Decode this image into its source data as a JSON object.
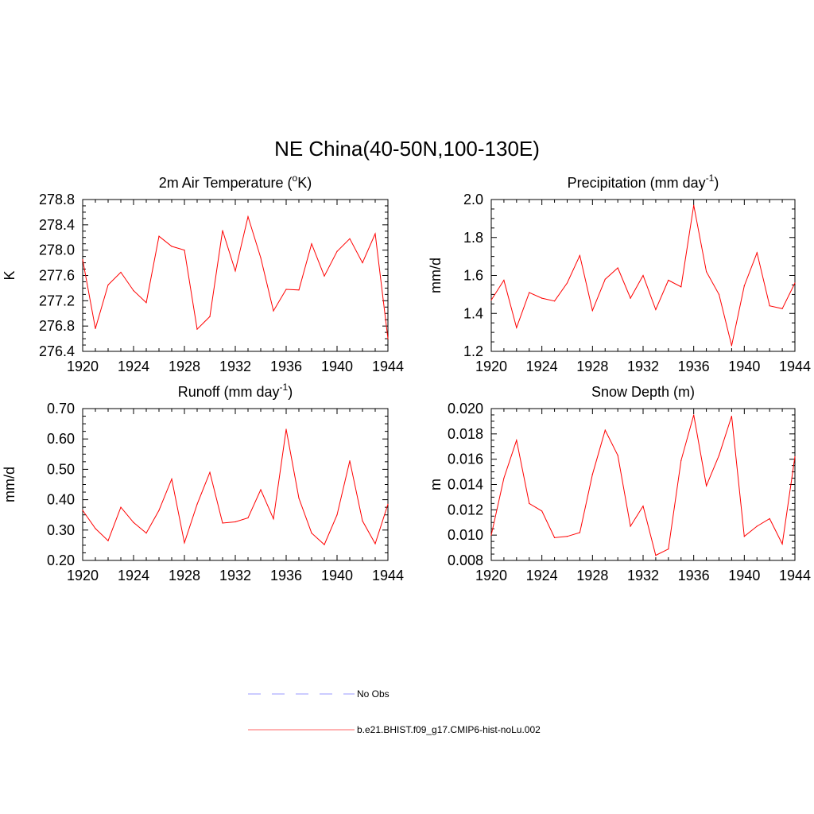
{
  "figure": {
    "title": "NE China(40-50N,100-130E)"
  },
  "legend": [
    {
      "label": "No Obs",
      "color": "#9999ff",
      "dash": true
    },
    {
      "label": "b.e21.BHIST.f09_g17.CMIP6-hist-noLu.002",
      "color": "#ff6666",
      "dash": false
    }
  ],
  "colors": {
    "series": "#ff0000",
    "axis": "#000000"
  },
  "chart_data": [
    {
      "type": "line",
      "title": "2m Air Temperature (",
      "title_sup": "o",
      "title_tail": "K)",
      "ylabel": "K",
      "xlim": [
        1920,
        1944
      ],
      "ylim": [
        276.4,
        278.8
      ],
      "xticks": [
        1920,
        1924,
        1928,
        1932,
        1936,
        1940,
        1944
      ],
      "xticklabels": [
        "1920",
        "1924",
        "1928",
        "1932",
        "1936",
        "1940",
        "1944"
      ],
      "yticks": [
        276.4,
        276.8,
        277.2,
        277.6,
        278.0,
        278.4,
        278.8
      ],
      "yticklabels": [
        "276.4",
        "276.8",
        "277.2",
        "277.6",
        "278.0",
        "278.4",
        "278.8"
      ],
      "series": [
        {
          "name": "b.e21.BHIST.f09_g17.CMIP6-hist-noLu.002",
          "x": [
            1920,
            1921,
            1922,
            1923,
            1924,
            1925,
            1926,
            1927,
            1928,
            1929,
            1930,
            1931,
            1932,
            1933,
            1934,
            1935,
            1936,
            1937,
            1938,
            1939,
            1940,
            1941,
            1942,
            1943,
            1944
          ],
          "y": [
            277.85,
            276.76,
            277.45,
            277.65,
            277.36,
            277.17,
            278.22,
            278.06,
            278.0,
            276.75,
            276.95,
            278.31,
            277.67,
            278.53,
            277.88,
            277.04,
            277.38,
            277.37,
            278.1,
            277.59,
            277.98,
            278.18,
            277.8,
            278.26,
            276.6
          ]
        }
      ]
    },
    {
      "type": "line",
      "title": "Precipitation (mm day",
      "title_sup": "-1",
      "title_tail": ")",
      "ylabel": "mm/d",
      "xlim": [
        1920,
        1944
      ],
      "ylim": [
        1.2,
        2.0
      ],
      "xticks": [
        1920,
        1924,
        1928,
        1932,
        1936,
        1940,
        1944
      ],
      "xticklabels": [
        "1920",
        "1924",
        "1928",
        "1932",
        "1936",
        "1940",
        "1944"
      ],
      "yticks": [
        1.2,
        1.4,
        1.6,
        1.8,
        2.0
      ],
      "yticklabels": [
        "1.2",
        "1.4",
        "1.6",
        "1.8",
        "2.0"
      ],
      "series": [
        {
          "name": "b.e21.BHIST.f09_g17.CMIP6-hist-noLu.002",
          "x": [
            1920,
            1921,
            1922,
            1923,
            1924,
            1925,
            1926,
            1927,
            1928,
            1929,
            1930,
            1931,
            1932,
            1933,
            1934,
            1935,
            1936,
            1937,
            1938,
            1939,
            1940,
            1941,
            1942,
            1943,
            1944
          ],
          "y": [
            1.47,
            1.575,
            1.325,
            1.51,
            1.48,
            1.465,
            1.56,
            1.705,
            1.415,
            1.58,
            1.64,
            1.48,
            1.6,
            1.42,
            1.575,
            1.54,
            1.97,
            1.62,
            1.5,
            1.23,
            1.545,
            1.72,
            1.44,
            1.425,
            1.56
          ]
        }
      ]
    },
    {
      "type": "line",
      "title": "Runoff (mm day",
      "title_sup": "-1",
      "title_tail": ")",
      "ylabel": "mm/d",
      "xlim": [
        1920,
        1944
      ],
      "ylim": [
        0.2,
        0.7
      ],
      "xticks": [
        1920,
        1924,
        1928,
        1932,
        1936,
        1940,
        1944
      ],
      "xticklabels": [
        "1920",
        "1924",
        "1928",
        "1932",
        "1936",
        "1940",
        "1944"
      ],
      "yticks": [
        0.2,
        0.3,
        0.4,
        0.5,
        0.6,
        0.7
      ],
      "yticklabels": [
        "0.20",
        "0.30",
        "0.40",
        "0.50",
        "0.60",
        "0.70"
      ],
      "series": [
        {
          "name": "b.e21.BHIST.f09_g17.CMIP6-hist-noLu.002",
          "x": [
            1920,
            1921,
            1922,
            1923,
            1924,
            1925,
            1926,
            1927,
            1928,
            1929,
            1930,
            1931,
            1932,
            1933,
            1934,
            1935,
            1936,
            1937,
            1938,
            1939,
            1940,
            1941,
            1942,
            1943,
            1944
          ],
          "y": [
            0.365,
            0.305,
            0.265,
            0.375,
            0.325,
            0.29,
            0.365,
            0.468,
            0.258,
            0.385,
            0.49,
            0.323,
            0.327,
            0.34,
            0.433,
            0.337,
            0.632,
            0.405,
            0.29,
            0.252,
            0.35,
            0.528,
            0.33,
            0.255,
            0.385
          ]
        }
      ]
    },
    {
      "type": "line",
      "title": "Snow Depth (m)",
      "title_sup": "",
      "title_tail": "",
      "ylabel": "m",
      "xlim": [
        1920,
        1944
      ],
      "ylim": [
        0.008,
        0.02
      ],
      "xticks": [
        1920,
        1924,
        1928,
        1932,
        1936,
        1940,
        1944
      ],
      "xticklabels": [
        "1920",
        "1924",
        "1928",
        "1932",
        "1936",
        "1940",
        "1944"
      ],
      "yticks": [
        0.008,
        0.01,
        0.012,
        0.014,
        0.016,
        0.018,
        0.02
      ],
      "yticklabels": [
        "0.008",
        "0.010",
        "0.012",
        "0.014",
        "0.016",
        "0.018",
        "0.020"
      ],
      "series": [
        {
          "name": "b.e21.BHIST.f09_g17.CMIP6-hist-noLu.002",
          "x": [
            1920,
            1921,
            1922,
            1923,
            1924,
            1925,
            1926,
            1927,
            1928,
            1929,
            1930,
            1931,
            1932,
            1933,
            1934,
            1935,
            1936,
            1937,
            1938,
            1939,
            1940,
            1941,
            1942,
            1943,
            1944
          ],
          "y": [
            0.01,
            0.0145,
            0.0175,
            0.0125,
            0.0119,
            0.0098,
            0.0099,
            0.0102,
            0.0148,
            0.0183,
            0.0163,
            0.0107,
            0.0123,
            0.0084,
            0.0089,
            0.0159,
            0.0195,
            0.0139,
            0.0163,
            0.0194,
            0.0099,
            0.0107,
            0.0113,
            0.0093,
            0.0162
          ]
        }
      ]
    }
  ]
}
